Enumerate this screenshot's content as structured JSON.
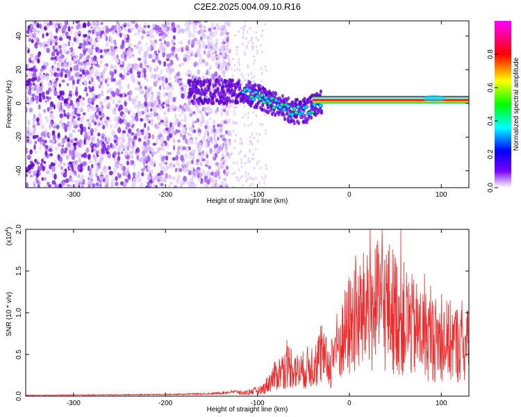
{
  "title": "C2E2.2025.004.09.10.R16",
  "chart_data": [
    {
      "type": "heatmap",
      "xlabel": "Height of straight line (km)",
      "ylabel": "Frequency (Hz)",
      "xlim": [
        -352,
        130
      ],
      "ylim": [
        -50,
        49
      ],
      "x_ticks": [
        -300,
        -200,
        -100,
        0,
        100
      ],
      "y_ticks": [
        -40,
        -20,
        0,
        20,
        40
      ],
      "grid": false,
      "colorbar": {
        "label": "Normalized spectral amplitude",
        "range": [
          0,
          1
        ],
        "ticks": [
          "0.0",
          "0.2",
          "0.4",
          "0.6",
          "0.8"
        ],
        "colors": [
          "#ffffff",
          "#7a00ff",
          "#0000ff",
          "#00ffff",
          "#00ff00",
          "#ffff00",
          "#ff0000",
          "#ff00ff"
        ]
      },
      "ridge": [
        {
          "x": -130,
          "y": 7
        },
        {
          "x": -110,
          "y": 6
        },
        {
          "x": -90,
          "y": 2
        },
        {
          "x": -75,
          "y": -2
        },
        {
          "x": -60,
          "y": -5
        },
        {
          "x": -45,
          "y": -4
        },
        {
          "x": -35,
          "y": 0
        },
        {
          "x": -20,
          "y": 2
        },
        {
          "x": 0,
          "y": 2
        },
        {
          "x": 50,
          "y": 2
        },
        {
          "x": 80,
          "y": 2
        },
        {
          "x": 95,
          "y": 3
        },
        {
          "x": 130,
          "y": 2
        }
      ]
    },
    {
      "type": "line",
      "xlabel": "Height of straight line (km)",
      "ylabel": "SNR (10 * v/v)",
      "scale_label": "(x10",
      "scale_exp": "4",
      "scale_close": ")",
      "xlim": [
        -352,
        130
      ],
      "ylim": [
        0,
        2.0
      ],
      "x_ticks": [
        -300,
        -200,
        -100,
        0,
        100
      ],
      "y_ticks": [
        "0.0",
        "0.5",
        "1.0",
        "1.5",
        "2.0"
      ],
      "grid": false,
      "color": "#ee2a2a",
      "envelope": [
        {
          "x": -352,
          "y": 0.01
        },
        {
          "x": -200,
          "y": 0.02
        },
        {
          "x": -150,
          "y": 0.03
        },
        {
          "x": -115,
          "y": 0.06
        },
        {
          "x": -95,
          "y": 0.12
        },
        {
          "x": -80,
          "y": 0.4
        },
        {
          "x": -65,
          "y": 0.6
        },
        {
          "x": -55,
          "y": 0.45
        },
        {
          "x": -40,
          "y": 0.6
        },
        {
          "x": -30,
          "y": 0.75
        },
        {
          "x": -20,
          "y": 0.55
        },
        {
          "x": -18,
          "y": 0.85
        },
        {
          "x": -10,
          "y": 1.0
        },
        {
          "x": 0,
          "y": 1.35
        },
        {
          "x": 20,
          "y": 1.65
        },
        {
          "x": 40,
          "y": 1.75
        },
        {
          "x": 55,
          "y": 1.55
        },
        {
          "x": 70,
          "y": 1.3
        },
        {
          "x": 90,
          "y": 1.1
        },
        {
          "x": 110,
          "y": 1.05
        },
        {
          "x": 130,
          "y": 0.95
        }
      ]
    }
  ]
}
